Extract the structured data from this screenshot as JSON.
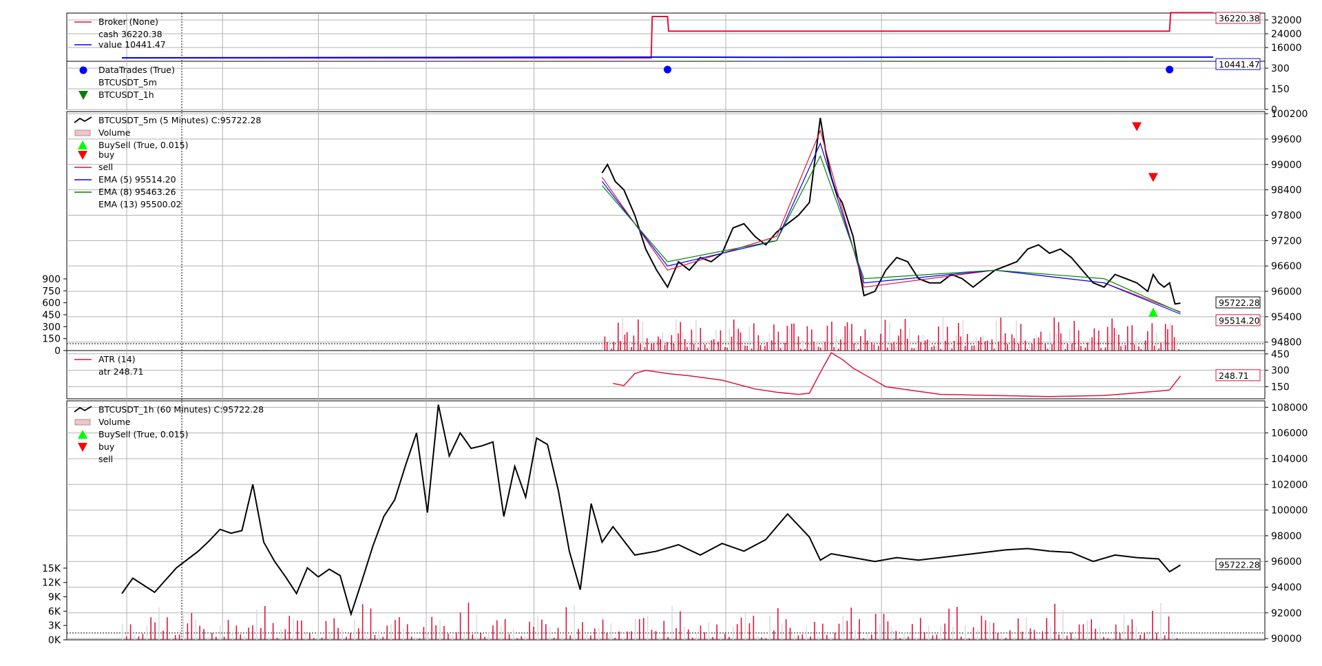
{
  "colors": {
    "cash": "#dc143c",
    "value": "#0000ff",
    "close": "#000000",
    "ema5": "#dc143c",
    "ema8": "#0000ff",
    "ema13": "#008000",
    "atr": "#dc143c",
    "buy": "#00ff00",
    "sell": "#ff0000",
    "volume_up": "#dcdcdc",
    "volume_down": "#dc143c",
    "grid": "#b0b0b0"
  },
  "chart_data": [
    {
      "type": "line",
      "panel": "broker",
      "legend": [
        "Broker (None)",
        "cash 36220.38",
        "value 10441.47"
      ],
      "yticks": [
        "32000",
        "24000",
        "16000"
      ],
      "ylim": [
        8000,
        36000
      ],
      "tags": [
        "36220.38",
        "10441.47"
      ],
      "series": [
        {
          "name": "cash",
          "x": [
            0.0,
            0.485,
            0.486,
            0.5,
            0.501,
            0.96,
            0.961,
            1.0
          ],
          "values": [
            10000,
            10000,
            34000,
            34000,
            25500,
            25500,
            36220.38,
            36220.38
          ]
        },
        {
          "name": "value",
          "x": [
            0.0,
            0.486,
            0.6,
            0.8,
            0.96,
            1.0
          ],
          "values": [
            10000,
            10441,
            10300,
            10400,
            10441.47,
            10441.47
          ]
        }
      ]
    },
    {
      "type": "scatter",
      "panel": "datatrades",
      "legend": [
        "DataTrades (True)",
        "BTCUSDT_5m",
        "BTCUSDT_1h"
      ],
      "yticks": [
        "300",
        "150",
        "0"
      ],
      "ylim": [
        0,
        350
      ],
      "points": [
        {
          "x": 0.5,
          "y": 290
        },
        {
          "x": 0.96,
          "y": 290
        }
      ]
    },
    {
      "type": "line",
      "panel": "BTCUSDT_5m",
      "legend": [
        "BTCUSDT_5m (5 Minutes) C:95722.28",
        "Volume",
        "BuySell (True, 0.015)",
        "buy",
        "sell",
        "EMA (5) 95514.20",
        "EMA (8) 95463.26",
        "EMA (13) 95500.02"
      ],
      "yticks": [
        "100200",
        "99600",
        "99000",
        "98400",
        "97800",
        "97200",
        "96600",
        "96000",
        "95400",
        "94800"
      ],
      "volume_ticks": [
        "900",
        "750",
        "600",
        "450",
        "300",
        "150",
        "0"
      ],
      "ylim": [
        94600,
        100250
      ],
      "volume_max": 3000,
      "tags": [
        "95722.28",
        "95514.20"
      ],
      "series": [
        {
          "name": "close",
          "x": [
            0.44,
            0.445,
            0.452,
            0.46,
            0.47,
            0.48,
            0.49,
            0.5,
            0.51,
            0.52,
            0.53,
            0.54,
            0.55,
            0.56,
            0.57,
            0.58,
            0.59,
            0.6,
            0.61,
            0.62,
            0.63,
            0.64,
            0.645,
            0.65,
            0.655,
            0.66,
            0.67,
            0.68,
            0.69,
            0.7,
            0.71,
            0.72,
            0.73,
            0.74,
            0.75,
            0.76,
            0.77,
            0.78,
            0.79,
            0.8,
            0.81,
            0.82,
            0.83,
            0.84,
            0.85,
            0.86,
            0.87,
            0.88,
            0.89,
            0.9,
            0.91,
            0.92,
            0.93,
            0.94,
            0.945,
            0.95,
            0.955,
            0.96,
            0.965,
            0.97
          ],
          "values": [
            98800,
            99000,
            98600,
            98400,
            97800,
            97000,
            96500,
            96100,
            96700,
            96500,
            96800,
            96700,
            96900,
            97500,
            97600,
            97300,
            97100,
            97400,
            97600,
            97800,
            98100,
            100100,
            99300,
            98700,
            98300,
            98100,
            97300,
            95900,
            96000,
            96500,
            96800,
            96700,
            96300,
            96200,
            96200,
            96400,
            96300,
            96100,
            96300,
            96500,
            96600,
            96700,
            97000,
            97100,
            96900,
            97000,
            96800,
            96500,
            96200,
            96100,
            96400,
            96300,
            96200,
            96000,
            96400,
            96200,
            96100,
            96200,
            95700,
            95722.28
          ]
        },
        {
          "name": "EMA (5)",
          "x": [
            0.44,
            0.5,
            0.6,
            0.64,
            0.68,
            0.8,
            0.9,
            0.97
          ],
          "values": [
            98700,
            96500,
            97300,
            99800,
            96100,
            96500,
            96200,
            95514.2
          ]
        },
        {
          "name": "EMA (8)",
          "x": [
            0.44,
            0.5,
            0.6,
            0.64,
            0.68,
            0.8,
            0.9,
            0.97
          ],
          "values": [
            98600,
            96600,
            97200,
            99500,
            96200,
            96500,
            96200,
            95463.26
          ]
        },
        {
          "name": "EMA (13)",
          "x": [
            0.44,
            0.5,
            0.6,
            0.64,
            0.68,
            0.8,
            0.9,
            0.97
          ],
          "values": [
            98500,
            96700,
            97200,
            99200,
            96300,
            96500,
            96300,
            95500.02
          ]
        }
      ],
      "markers": [
        {
          "kind": "sell",
          "x": 0.93,
          "y": 99900
        },
        {
          "kind": "sell",
          "x": 0.945,
          "y": 98700
        },
        {
          "kind": "buy",
          "x": 0.945,
          "y": 95500
        }
      ]
    },
    {
      "type": "line",
      "panel": "atr",
      "legend": [
        "ATR (14)",
        "atr 248.71"
      ],
      "yticks": [
        "450",
        "300",
        "150"
      ],
      "ylim": [
        40,
        480
      ],
      "tags": [
        "248.71"
      ],
      "series": [
        {
          "name": "atr",
          "x": [
            0.45,
            0.46,
            0.47,
            0.48,
            0.5,
            0.52,
            0.55,
            0.58,
            0.6,
            0.62,
            0.63,
            0.64,
            0.65,
            0.66,
            0.67,
            0.7,
            0.75,
            0.8,
            0.85,
            0.9,
            0.95,
            0.96,
            0.97
          ],
          "values": [
            180,
            160,
            270,
            300,
            270,
            250,
            210,
            130,
            100,
            80,
            90,
            280,
            460,
            400,
            320,
            150,
            80,
            70,
            60,
            70,
            110,
            120,
            248.71
          ]
        }
      ]
    },
    {
      "type": "line",
      "panel": "BTCUSDT_1h",
      "legend": [
        "BTCUSDT_1h (60 Minutes) C:95722.28",
        "Volume",
        "BuySell (True, 0.015)",
        "buy",
        "sell"
      ],
      "yticks": [
        "108000",
        "106000",
        "104000",
        "102000",
        "100000",
        "98000",
        "96000",
        "94000",
        "92000",
        "90000"
      ],
      "volume_ticks": [
        "15K",
        "12K",
        "9K",
        "6K",
        "3K",
        "0K"
      ],
      "ylim": [
        89900,
        108500
      ],
      "volume_max": 45000,
      "tags": [
        "95722.28"
      ],
      "series": [
        {
          "name": "close",
          "x": [
            0.0,
            0.01,
            0.03,
            0.05,
            0.07,
            0.08,
            0.09,
            0.1,
            0.11,
            0.12,
            0.13,
            0.14,
            0.15,
            0.16,
            0.17,
            0.18,
            0.19,
            0.2,
            0.21,
            0.22,
            0.23,
            0.24,
            0.25,
            0.26,
            0.27,
            0.28,
            0.29,
            0.3,
            0.31,
            0.32,
            0.33,
            0.34,
            0.35,
            0.36,
            0.37,
            0.38,
            0.39,
            0.4,
            0.41,
            0.42,
            0.43,
            0.44,
            0.45,
            0.47,
            0.49,
            0.51,
            0.53,
            0.55,
            0.57,
            0.59,
            0.61,
            0.63,
            0.64,
            0.65,
            0.67,
            0.69,
            0.71,
            0.73,
            0.75,
            0.77,
            0.79,
            0.81,
            0.83,
            0.85,
            0.87,
            0.89,
            0.91,
            0.93,
            0.95,
            0.96,
            0.97
          ],
          "values": [
            93500,
            94700,
            93600,
            95500,
            96800,
            97600,
            98500,
            98200,
            98400,
            102000,
            97500,
            96000,
            94800,
            93500,
            95500,
            94800,
            95400,
            94900,
            91900,
            94500,
            97200,
            99500,
            100800,
            103500,
            106000,
            99800,
            108200,
            104200,
            106000,
            104800,
            105000,
            105300,
            99500,
            103400,
            101000,
            105600,
            105100,
            101500,
            96800,
            93800,
            100500,
            97500,
            98700,
            96500,
            96800,
            97300,
            96500,
            97400,
            96800,
            97700,
            99700,
            97900,
            96100,
            96600,
            96300,
            96000,
            96300,
            96100,
            96300,
            96500,
            96700,
            96900,
            97000,
            96800,
            96700,
            96000,
            96500,
            96300,
            96200,
            95200,
            95722.28
          ]
        }
      ]
    }
  ]
}
